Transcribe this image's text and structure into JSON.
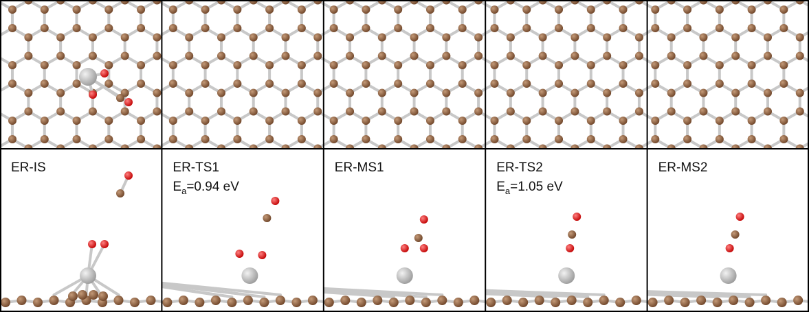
{
  "panels": [
    {
      "label": "ER-IS"
    },
    {
      "label": "ER-TS1",
      "energy": {
        "symbol": "E",
        "subscript": "a",
        "text": "=0.94 eV"
      }
    },
    {
      "label": "ER-MS1"
    },
    {
      "label": "ER-TS2",
      "energy": {
        "symbol": "E",
        "subscript": "a",
        "text": "=1.05 eV"
      }
    },
    {
      "label": "ER-MS2"
    }
  ]
}
